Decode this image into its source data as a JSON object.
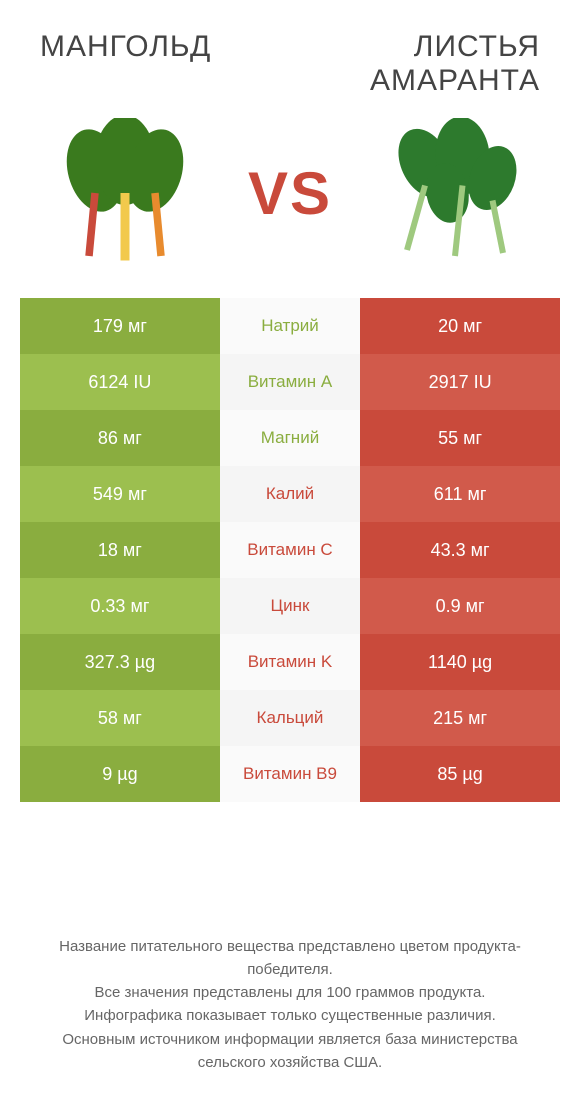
{
  "header": {
    "left_title": "МАНГОЛЬД",
    "right_title": "ЛИСТЬЯ АМАРАНТА",
    "vs": "VS"
  },
  "colors": {
    "left_primary": "#8aad3f",
    "left_alt": "#9cbf4f",
    "right_primary": "#c94a3b",
    "right_alt": "#d15a4b",
    "mid_left_text": "#8aad3f",
    "mid_right_text": "#c94a3b",
    "background": "#ffffff"
  },
  "rows": [
    {
      "left": "179 мг",
      "label": "Натрий",
      "right": "20 мг",
      "winner": "left"
    },
    {
      "left": "6124 IU",
      "label": "Витамин A",
      "right": "2917 IU",
      "winner": "left"
    },
    {
      "left": "86 мг",
      "label": "Магний",
      "right": "55 мг",
      "winner": "left"
    },
    {
      "left": "549 мг",
      "label": "Калий",
      "right": "611 мг",
      "winner": "right"
    },
    {
      "left": "18 мг",
      "label": "Витамин C",
      "right": "43.3 мг",
      "winner": "right"
    },
    {
      "left": "0.33 мг",
      "label": "Цинк",
      "right": "0.9 мг",
      "winner": "right"
    },
    {
      "left": "327.3 µg",
      "label": "Витамин K",
      "right": "1140 µg",
      "winner": "right"
    },
    {
      "left": "58 мг",
      "label": "Кальций",
      "right": "215 мг",
      "winner": "right"
    },
    {
      "left": "9 µg",
      "label": "Витамин B9",
      "right": "85 µg",
      "winner": "right"
    }
  ],
  "footer": {
    "line1": "Название питательного вещества представлено цветом продукта-победителя.",
    "line2": "Все значения представлены для 100 граммов продукта.",
    "line3": "Инфографика показывает только существенные различия.",
    "line4": "Основным источником информации является база министерства сельского хозяйства США."
  }
}
